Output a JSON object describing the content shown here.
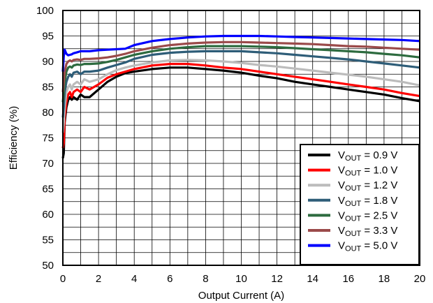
{
  "chart_data": {
    "type": "line",
    "xlabel": "Output Current (A)",
    "ylabel": "Efficiency (%)",
    "xlim": [
      0,
      20
    ],
    "ylim": [
      50,
      100
    ],
    "xticks": [
      "0",
      "2",
      "4",
      "6",
      "8",
      "10",
      "12",
      "14",
      "16",
      "18",
      "20"
    ],
    "yticks": [
      "50",
      "55",
      "60",
      "65",
      "70",
      "75",
      "80",
      "85",
      "90",
      "95",
      "100"
    ],
    "x_gridstep": 1,
    "y_gridstep": 2.5,
    "grid": true,
    "legend_position": "bottom-right",
    "series": [
      {
        "name": "VOUT = 0.9 V",
        "label_main": "V",
        "label_sub": "OUT",
        "label_rest": " = 0.9 V",
        "color": "#000000",
        "x": [
          0,
          0.05,
          0.1,
          0.2,
          0.3,
          0.4,
          0.5,
          0.6,
          0.8,
          1.0,
          1.2,
          1.5,
          2,
          2.5,
          3,
          3.5,
          4,
          5,
          6,
          7,
          8,
          9,
          10,
          11,
          12,
          13,
          14,
          15,
          16,
          17,
          18,
          19,
          20
        ],
        "y": [
          71,
          72,
          78,
          81,
          82.5,
          83,
          82.5,
          83,
          82.5,
          83.5,
          83,
          83,
          84.5,
          86,
          87,
          87.7,
          88,
          88.5,
          88.8,
          88.8,
          88.5,
          88.2,
          87.8,
          87.2,
          86.7,
          86,
          85.5,
          85,
          84.5,
          84,
          83.5,
          82.8,
          82.2
        ]
      },
      {
        "name": "VOUT = 1.0 V",
        "label_main": "V",
        "label_sub": "OUT",
        "label_rest": " = 1.0 V",
        "color": "#ff0000",
        "x": [
          0,
          0.05,
          0.1,
          0.2,
          0.3,
          0.4,
          0.5,
          0.6,
          0.8,
          1.0,
          1.2,
          1.5,
          2,
          2.5,
          3,
          3.5,
          4,
          5,
          6,
          7,
          8,
          9,
          10,
          11,
          12,
          13,
          14,
          15,
          16,
          17,
          18,
          19,
          20
        ],
        "y": [
          73,
          74,
          79,
          82,
          83.5,
          84,
          83,
          84,
          84.5,
          84,
          85,
          84.5,
          85.5,
          86.8,
          87.5,
          88,
          88.5,
          89.2,
          89.5,
          89.5,
          89.2,
          88.8,
          88.5,
          88,
          87.5,
          87,
          86.5,
          86,
          85.5,
          85,
          84.5,
          83.8,
          83.2
        ]
      },
      {
        "name": "VOUT = 1.2 V",
        "label_main": "V",
        "label_sub": "OUT",
        "label_rest": " = 1.2 V",
        "color": "#bcbcbc",
        "x": [
          0,
          0.05,
          0.1,
          0.2,
          0.3,
          0.4,
          0.5,
          0.6,
          0.8,
          1.0,
          1.2,
          1.5,
          2,
          2.5,
          3,
          3.5,
          4,
          5,
          6,
          7,
          8,
          9,
          10,
          11,
          12,
          13,
          14,
          15,
          16,
          17,
          18,
          19,
          20
        ],
        "y": [
          76,
          78,
          81,
          84,
          85,
          85.5,
          84.5,
          85.5,
          86,
          85.5,
          86.5,
          86,
          86.5,
          87.5,
          88.3,
          88.8,
          89.2,
          89.8,
          90.2,
          90.3,
          90.2,
          90,
          89.7,
          89.3,
          89,
          88.6,
          88.2,
          87.8,
          87.4,
          87,
          86.5,
          86,
          85.3
        ]
      },
      {
        "name": "VOUT = 1.8 V",
        "label_main": "V",
        "label_sub": "OUT",
        "label_rest": " = 1.8 V",
        "color": "#2e5d78",
        "x": [
          0,
          0.05,
          0.1,
          0.2,
          0.3,
          0.4,
          0.5,
          0.6,
          0.8,
          1.0,
          1.2,
          1.5,
          2,
          2.5,
          3,
          3.5,
          4,
          5,
          6,
          7,
          8,
          9,
          10,
          11,
          12,
          13,
          14,
          15,
          16,
          17,
          18,
          19,
          20
        ],
        "y": [
          79,
          81,
          84,
          86,
          87,
          87.5,
          87,
          87.8,
          88,
          87.5,
          88,
          88,
          88.2,
          88.8,
          89.3,
          89.8,
          90.5,
          91.3,
          91.7,
          91.9,
          92,
          92,
          92,
          91.8,
          91.6,
          91.3,
          91,
          90.7,
          90.4,
          90,
          89.6,
          89.2,
          88.8
        ]
      },
      {
        "name": "VOUT = 2.5 V",
        "label_main": "V",
        "label_sub": "OUT",
        "label_rest": " = 2.5 V",
        "color": "#2d6b3f",
        "x": [
          0,
          0.05,
          0.1,
          0.2,
          0.3,
          0.4,
          0.5,
          0.6,
          0.8,
          1.0,
          1.2,
          1.5,
          2,
          2.5,
          3,
          3.5,
          4,
          5,
          6,
          7,
          8,
          9,
          10,
          11,
          12,
          13,
          14,
          15,
          16,
          17,
          18,
          19,
          20
        ],
        "y": [
          82,
          84,
          86,
          88,
          88.8,
          89,
          88.8,
          89.2,
          89.4,
          89.3,
          89.5,
          89.5,
          89.6,
          89.9,
          90.3,
          90.8,
          91.3,
          92,
          92.5,
          92.8,
          93,
          93,
          93,
          92.9,
          92.8,
          92.6,
          92.4,
          92.2,
          92,
          91.8,
          91.5,
          91.2,
          90.8
        ]
      },
      {
        "name": "VOUT = 3.3 V",
        "label_main": "V",
        "label_sub": "OUT",
        "label_rest": " = 3.3 V",
        "color": "#9b4a4a",
        "x": [
          0,
          0.05,
          0.1,
          0.2,
          0.3,
          0.4,
          0.5,
          0.6,
          0.8,
          1.0,
          1.2,
          1.5,
          2,
          2.5,
          3,
          3.5,
          4,
          5,
          6,
          7,
          8,
          9,
          10,
          11,
          12,
          13,
          14,
          15,
          16,
          17,
          18,
          19,
          20
        ],
        "y": [
          84,
          86,
          88,
          89.5,
          90,
          90.2,
          90,
          90.3,
          90.4,
          90.3,
          90.5,
          90.5,
          90.6,
          90.8,
          91.1,
          91.5,
          92,
          92.7,
          93.2,
          93.5,
          93.7,
          93.8,
          93.8,
          93.7,
          93.6,
          93.5,
          93.4,
          93.2,
          93,
          92.9,
          92.7,
          92.5,
          92.3
        ]
      },
      {
        "name": "VOUT = 5.0 V",
        "label_main": "V",
        "label_sub": "OUT",
        "label_rest": " = 5.0 V",
        "color": "#0000ff",
        "x": [
          0,
          0.05,
          0.1,
          0.2,
          0.3,
          0.4,
          0.5,
          0.6,
          0.8,
          1.0,
          1.5,
          2,
          2.5,
          3,
          3.5,
          4,
          5,
          6,
          7,
          8,
          9,
          10,
          11,
          12,
          13,
          14,
          15,
          16,
          17,
          18,
          19,
          20
        ],
        "y": [
          88,
          91,
          92.3,
          91.5,
          91.2,
          91.3,
          91.4,
          91.6,
          91.8,
          92,
          92,
          92.2,
          92.3,
          92.4,
          92.5,
          93.2,
          94,
          94.4,
          94.7,
          94.9,
          95,
          95,
          95,
          94.9,
          94.8,
          94.7,
          94.6,
          94.5,
          94.4,
          94.3,
          94.2,
          94
        ]
      }
    ]
  }
}
